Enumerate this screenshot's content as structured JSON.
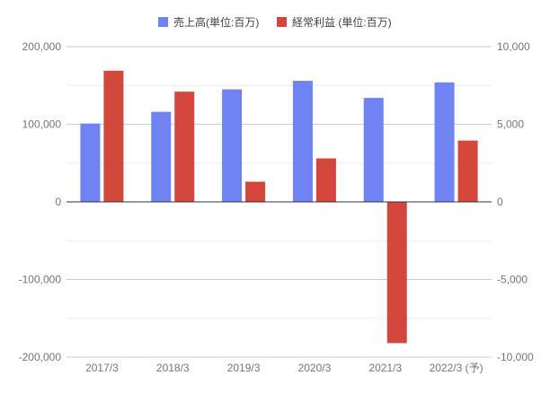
{
  "chart_data": {
    "type": "bar",
    "title": "",
    "categories": [
      "2017/3",
      "2018/3",
      "2019/3",
      "2020/3",
      "2021/3",
      "2022/3 (予)"
    ],
    "series": [
      {
        "name": "売上高(単位:百万)",
        "axis": "left",
        "color": "#6f84f2",
        "values": [
          101000,
          116000,
          145000,
          156000,
          134000,
          154000
        ]
      },
      {
        "name": "経常利益 (単位:百万)",
        "axis": "right",
        "color": "#d2463c",
        "values": [
          8450,
          7100,
          1300,
          2800,
          -9100,
          3950
        ]
      }
    ],
    "y_left": {
      "min": -200000,
      "max": 200000,
      "ticks": [
        200000,
        100000,
        0,
        -100000,
        -200000
      ],
      "tick_labels": [
        "200,000",
        "100,000",
        "0",
        "-100,000",
        "-200,000"
      ]
    },
    "y_right": {
      "min": -10000,
      "max": 10000,
      "ticks": [
        10000,
        5000,
        0,
        -5000,
        -10000
      ],
      "tick_labels": [
        "10,000",
        "5,000",
        "0",
        "-5,000",
        "-10,000"
      ]
    },
    "grid": true,
    "legend": "top-center"
  }
}
